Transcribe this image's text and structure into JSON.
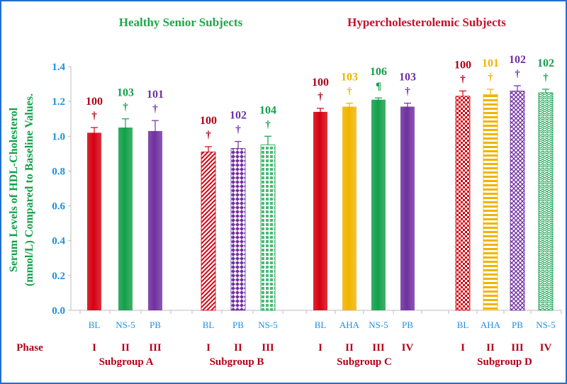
{
  "chart_data": {
    "type": "bar",
    "group_titles": [
      {
        "text": "Healthy Senior  Subjects",
        "color": "#1ea84a"
      },
      {
        "text": "Hypercholesterolemic Subjects",
        "color": "#c8102e"
      }
    ],
    "ylabel_lines": [
      "Serum Levels of  HDL-Cholesterol",
      "(mmol/L) Compared to  Baseline Values."
    ],
    "ylim": [
      0,
      1.4
    ],
    "yticks": [
      "0.0",
      "0.2",
      "0.4",
      "0.6",
      "0.8",
      "1.0",
      "1.2",
      "1.4"
    ],
    "phase_label": "Phase",
    "colors": {
      "red": "#d40010",
      "green": "#12a04a",
      "purple": "#7030a0",
      "gold": "#f0b400",
      "axis_text": "#1e90e0",
      "dark_red": "#b00018"
    },
    "subgroups": [
      {
        "label": "Subgroup  A",
        "bars": [
          {
            "category": "BL",
            "phase": "I",
            "value": 1.02,
            "error": 0.03,
            "pct": "100",
            "mark": "†",
            "color": "red",
            "pattern": "solid"
          },
          {
            "category": "NS-5",
            "phase": "II",
            "value": 1.05,
            "error": 0.05,
            "pct": "103",
            "mark": "†",
            "color": "green",
            "pattern": "solid"
          },
          {
            "category": "PB",
            "phase": "III",
            "value": 1.03,
            "error": 0.06,
            "pct": "101",
            "mark": "†",
            "color": "purple",
            "pattern": "solid"
          }
        ]
      },
      {
        "label": "Subgroup  B",
        "bars": [
          {
            "category": "BL",
            "phase": "I",
            "value": 0.91,
            "error": 0.03,
            "pct": "100",
            "mark": "†",
            "color": "red",
            "pattern": "diag"
          },
          {
            "category": "PB",
            "phase": "II",
            "value": 0.93,
            "error": 0.04,
            "pct": "102",
            "mark": "†",
            "color": "purple",
            "pattern": "diamond"
          },
          {
            "category": "NS-5",
            "phase": "III",
            "value": 0.95,
            "error": 0.05,
            "pct": "104",
            "mark": "†",
            "color": "green",
            "pattern": "grid"
          }
        ]
      },
      {
        "label": "Subgroup  C",
        "bars": [
          {
            "category": "BL",
            "phase": "I",
            "value": 1.14,
            "error": 0.02,
            "pct": "100",
            "mark": "†",
            "color": "red",
            "pattern": "solid"
          },
          {
            "category": "AHA",
            "phase": "II",
            "value": 1.17,
            "error": 0.02,
            "pct": "103",
            "mark": "†",
            "color": "gold",
            "pattern": "solid"
          },
          {
            "category": "NS-5",
            "phase": "III",
            "value": 1.21,
            "error": 0.01,
            "pct": "106",
            "mark": "¶",
            "color": "green",
            "pattern": "solid"
          },
          {
            "category": "PB",
            "phase": "IV",
            "value": 1.17,
            "error": 0.02,
            "pct": "103",
            "mark": "†",
            "color": "purple",
            "pattern": "solid"
          }
        ]
      },
      {
        "label": "Subgroup  D",
        "bars": [
          {
            "category": "BL",
            "phase": "I",
            "value": 1.23,
            "error": 0.03,
            "pct": "100",
            "mark": "†",
            "color": "red",
            "pattern": "check"
          },
          {
            "category": "AHA",
            "phase": "II",
            "value": 1.24,
            "error": 0.03,
            "pct": "101",
            "mark": "†",
            "color": "gold",
            "pattern": "hstripe"
          },
          {
            "category": "PB",
            "phase": "III",
            "value": 1.26,
            "error": 0.03,
            "pct": "102",
            "mark": "†",
            "color": "purple",
            "pattern": "weave"
          },
          {
            "category": "NS-5",
            "phase": "IV",
            "value": 1.25,
            "error": 0.02,
            "pct": "102",
            "mark": "†",
            "color": "green",
            "pattern": "wave"
          }
        ]
      }
    ]
  }
}
